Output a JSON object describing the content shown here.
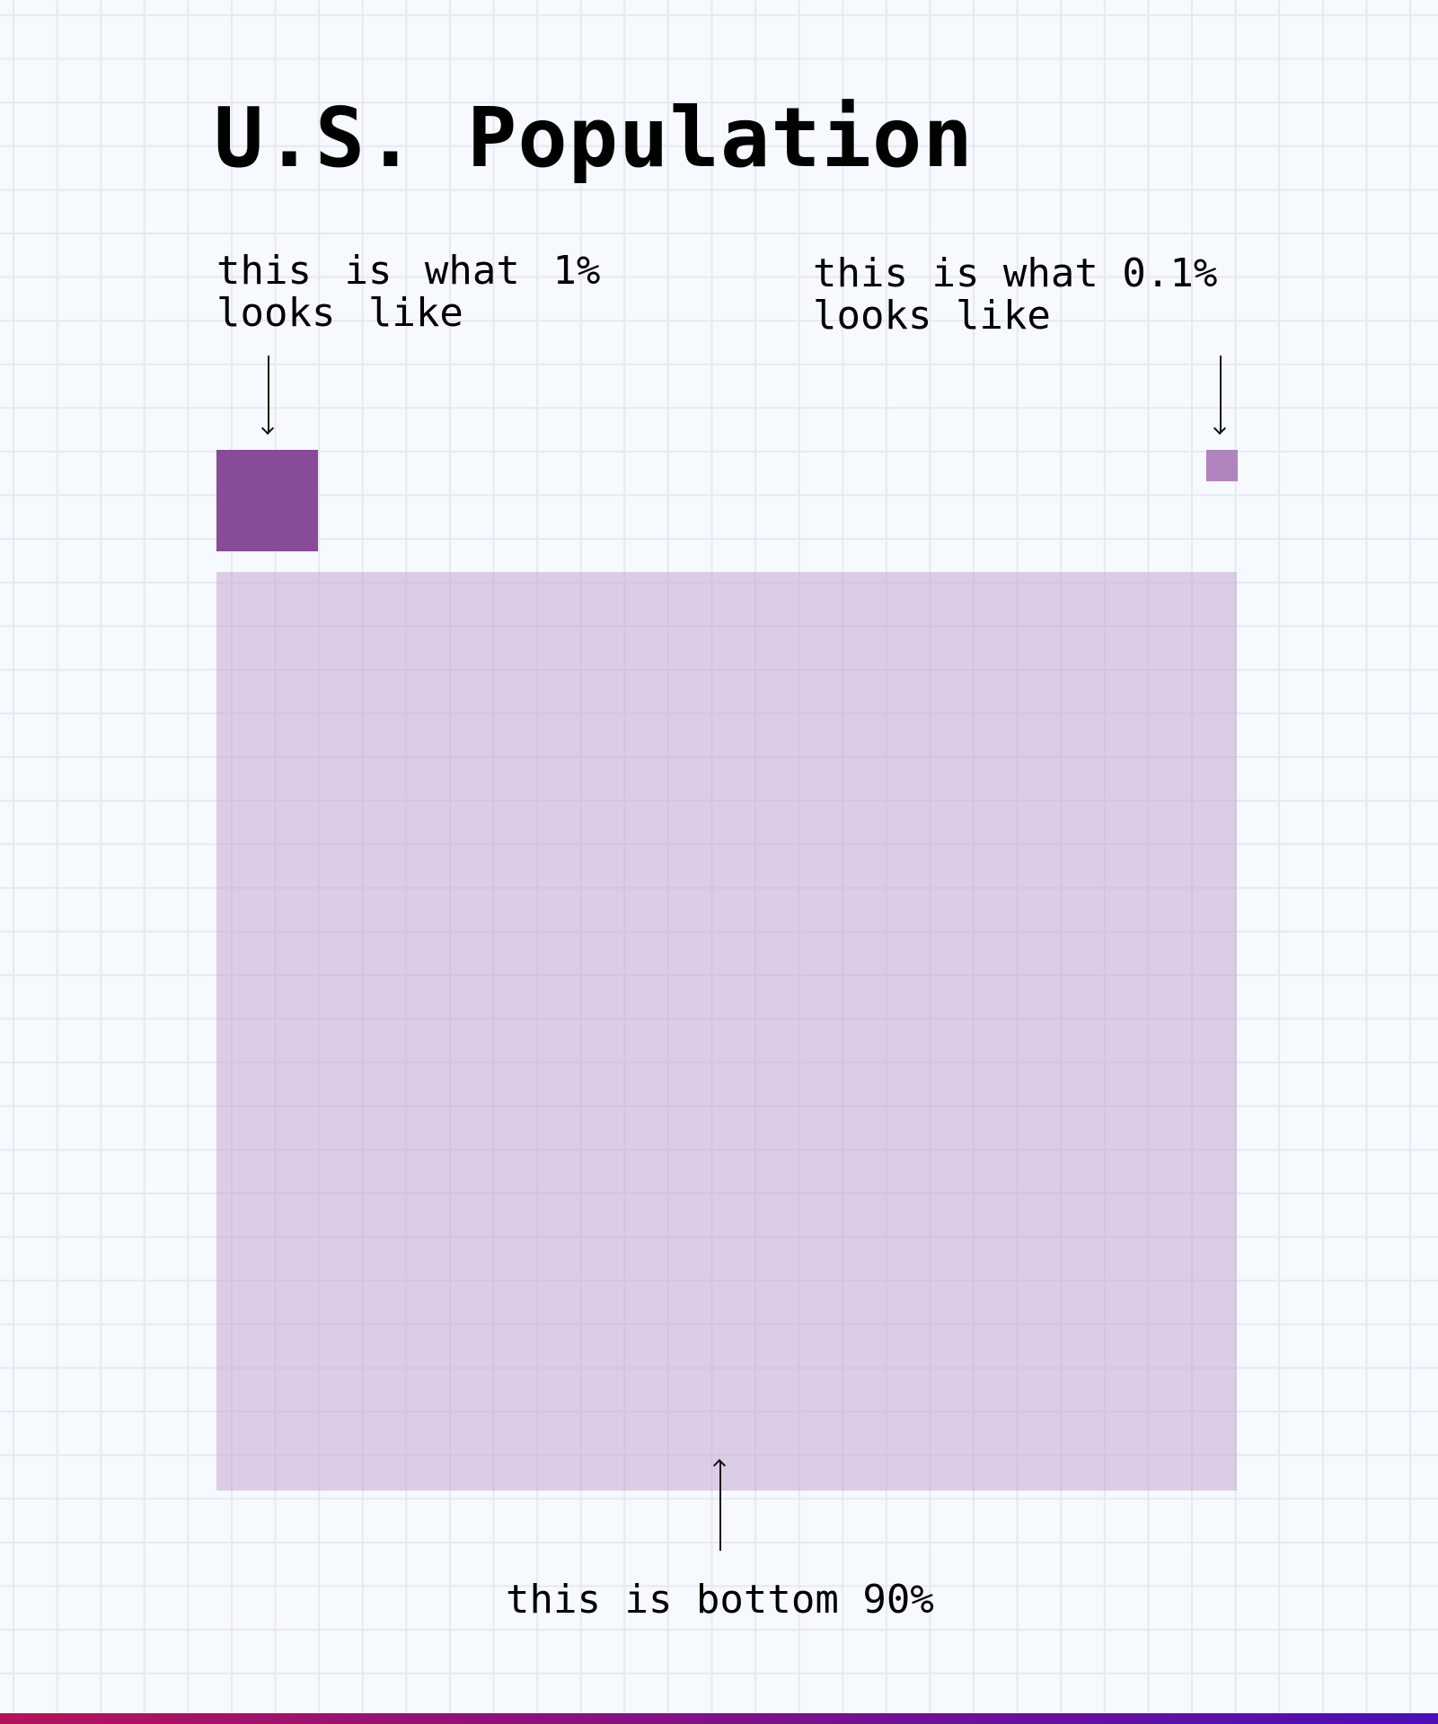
{
  "title": "U.S. Population",
  "annotations": {
    "one_percent": {
      "line1": "this is what 1%",
      "line2": "looks like"
    },
    "tenth_percent": {
      "line1": "this is what 0.1%",
      "line2": "looks like"
    },
    "bottom": "this is bottom 90%"
  },
  "squares": [
    {
      "name": "1%",
      "share_percent": 1,
      "color": "#874b97"
    },
    {
      "name": "0.1%",
      "share_percent": 0.1,
      "color": "#b083bf"
    },
    {
      "name": "bottom 90%",
      "share_percent": 90,
      "color": "#dccde4"
    }
  ],
  "accent_gradient": [
    "#b5125a",
    "#4a0fb8"
  ]
}
